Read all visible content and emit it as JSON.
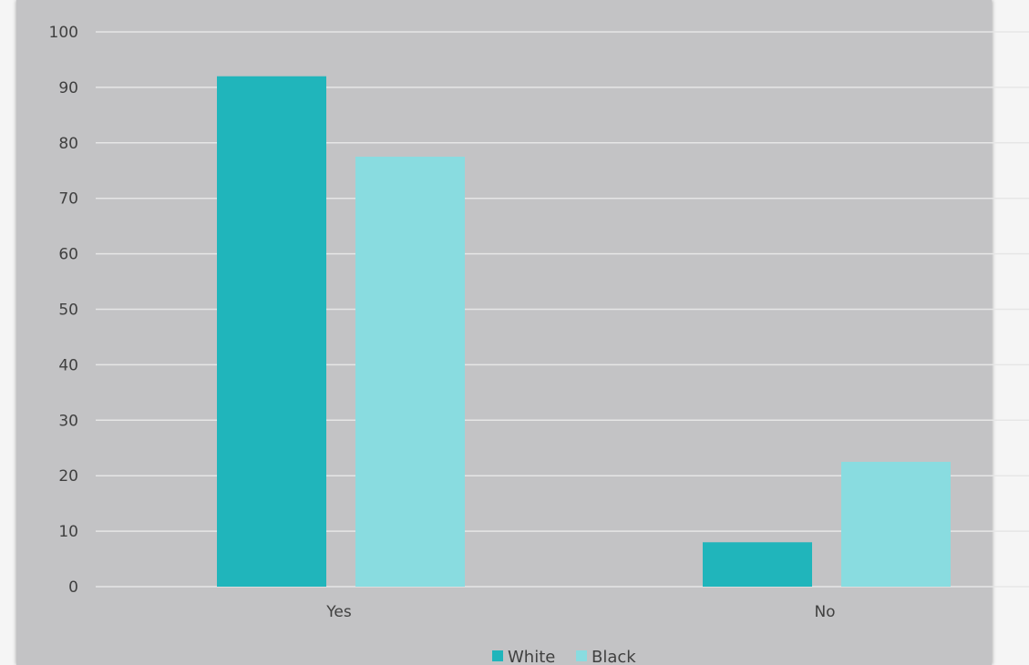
{
  "colors": {
    "page_background": "#f5f5f5",
    "plot_background": "#c3c3c5",
    "gridline": "#e6e6e6",
    "series_white": "#20b5bb",
    "series_black": "#89dce0",
    "text": "#404040"
  },
  "chart_data": {
    "type": "bar",
    "title": "",
    "xlabel": "",
    "ylabel": "",
    "categories": [
      "Yes",
      "No"
    ],
    "series": [
      {
        "name": "White",
        "values": [
          92,
          8
        ]
      },
      {
        "name": "Black",
        "values": [
          77.5,
          22.5
        ]
      }
    ],
    "ylim": [
      0,
      100
    ],
    "yticks": [
      0,
      10,
      20,
      30,
      40,
      50,
      60,
      70,
      80,
      90,
      100
    ],
    "grid": true,
    "legend_position": "bottom"
  }
}
